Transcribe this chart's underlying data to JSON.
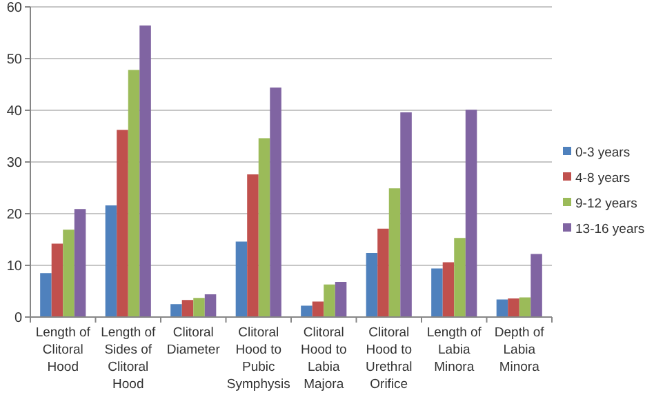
{
  "chart_data": {
    "type": "bar",
    "categories": [
      "Length of Clitoral Hood",
      "Length of Sides of Clitoral Hood",
      "Clitoral Diameter",
      "Clitoral Hood to Pubic Symphysis",
      "Clitoral Hood to Labia Majora",
      "Clitoral Hood to Urethral Orifice",
      "Length of Labia Minora",
      "Depth of Labia Minora"
    ],
    "series": [
      {
        "name": "0-3 years",
        "color": "#4f81bd",
        "values": [
          8.5,
          21.6,
          2.5,
          14.6,
          2.2,
          12.4,
          9.4,
          3.4
        ]
      },
      {
        "name": "4-8 years",
        "color": "#c0504d",
        "values": [
          14.2,
          36.2,
          3.3,
          27.6,
          3.0,
          17.1,
          10.6,
          3.6
        ]
      },
      {
        "name": "9-12 years",
        "color": "#9bbb59",
        "values": [
          16.9,
          47.8,
          3.7,
          34.6,
          6.3,
          24.9,
          15.3,
          3.8
        ]
      },
      {
        "name": "13-16 years",
        "color": "#8064a2",
        "values": [
          20.9,
          56.4,
          4.4,
          44.4,
          6.8,
          39.6,
          40.1,
          12.2
        ]
      }
    ],
    "ylim": [
      0,
      60
    ],
    "yticks": [
      0,
      10,
      20,
      30,
      40,
      50,
      60
    ],
    "grid": "y",
    "legend": "right"
  }
}
